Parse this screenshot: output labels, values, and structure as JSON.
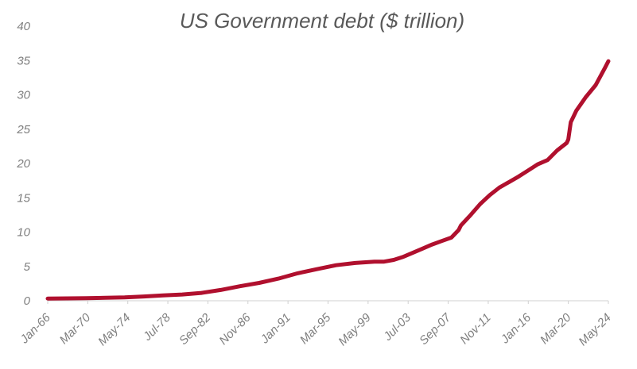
{
  "chart_data": {
    "type": "line",
    "title": "US Government debt ($ trillion)",
    "xlabel": "",
    "ylabel": "",
    "ylim": [
      0,
      40
    ],
    "yticks": [
      0,
      5,
      10,
      15,
      20,
      25,
      30,
      35,
      40
    ],
    "grid": false,
    "legend": "none",
    "color": "#B0102E",
    "xtick_labels": [
      "Jan-66",
      "Mar-70",
      "May-74",
      "Jul-78",
      "Sep-82",
      "Nov-86",
      "Jan-91",
      "Mar-95",
      "May-99",
      "Jul-03",
      "Sep-07",
      "Nov-11",
      "Jan-16",
      "Mar-20",
      "May-24"
    ],
    "series": [
      {
        "x": [
          "Jan-66",
          "Jan-68",
          "Jan-70",
          "Jan-72",
          "Jan-74",
          "Jan-76",
          "Jan-78",
          "Jan-80",
          "Jan-82",
          "Jan-84",
          "Jan-86",
          "Jan-88",
          "Jan-90",
          "Jan-92",
          "Jan-94",
          "Jan-96",
          "Jan-98",
          "Jan-00",
          "Jan-01",
          "Jan-02",
          "Jan-03",
          "Jan-04",
          "Jan-05",
          "Jan-06",
          "Jan-07",
          "Jan-08",
          "Oct-08",
          "Jan-09",
          "Jan-10",
          "Jan-11",
          "Jan-12",
          "Jan-13",
          "Jan-14",
          "Jan-15",
          "Jan-16",
          "Jan-17",
          "Jan-18",
          "Jan-19",
          "Jan-20",
          "Mar-20",
          "Jun-20",
          "Jan-21",
          "Jan-22",
          "Jan-23",
          "Jan-24",
          "May-24"
        ],
        "values": [
          0.32,
          0.35,
          0.38,
          0.43,
          0.48,
          0.62,
          0.78,
          0.91,
          1.14,
          1.57,
          2.12,
          2.6,
          3.23,
          4.0,
          4.6,
          5.18,
          5.5,
          5.7,
          5.7,
          5.95,
          6.4,
          7.0,
          7.6,
          8.2,
          8.7,
          9.2,
          10.3,
          11.0,
          12.5,
          14.1,
          15.4,
          16.5,
          17.3,
          18.1,
          19.0,
          19.9,
          20.5,
          21.9,
          23.0,
          23.5,
          26.0,
          27.7,
          29.7,
          31.4,
          34.0,
          34.9
        ]
      }
    ]
  }
}
